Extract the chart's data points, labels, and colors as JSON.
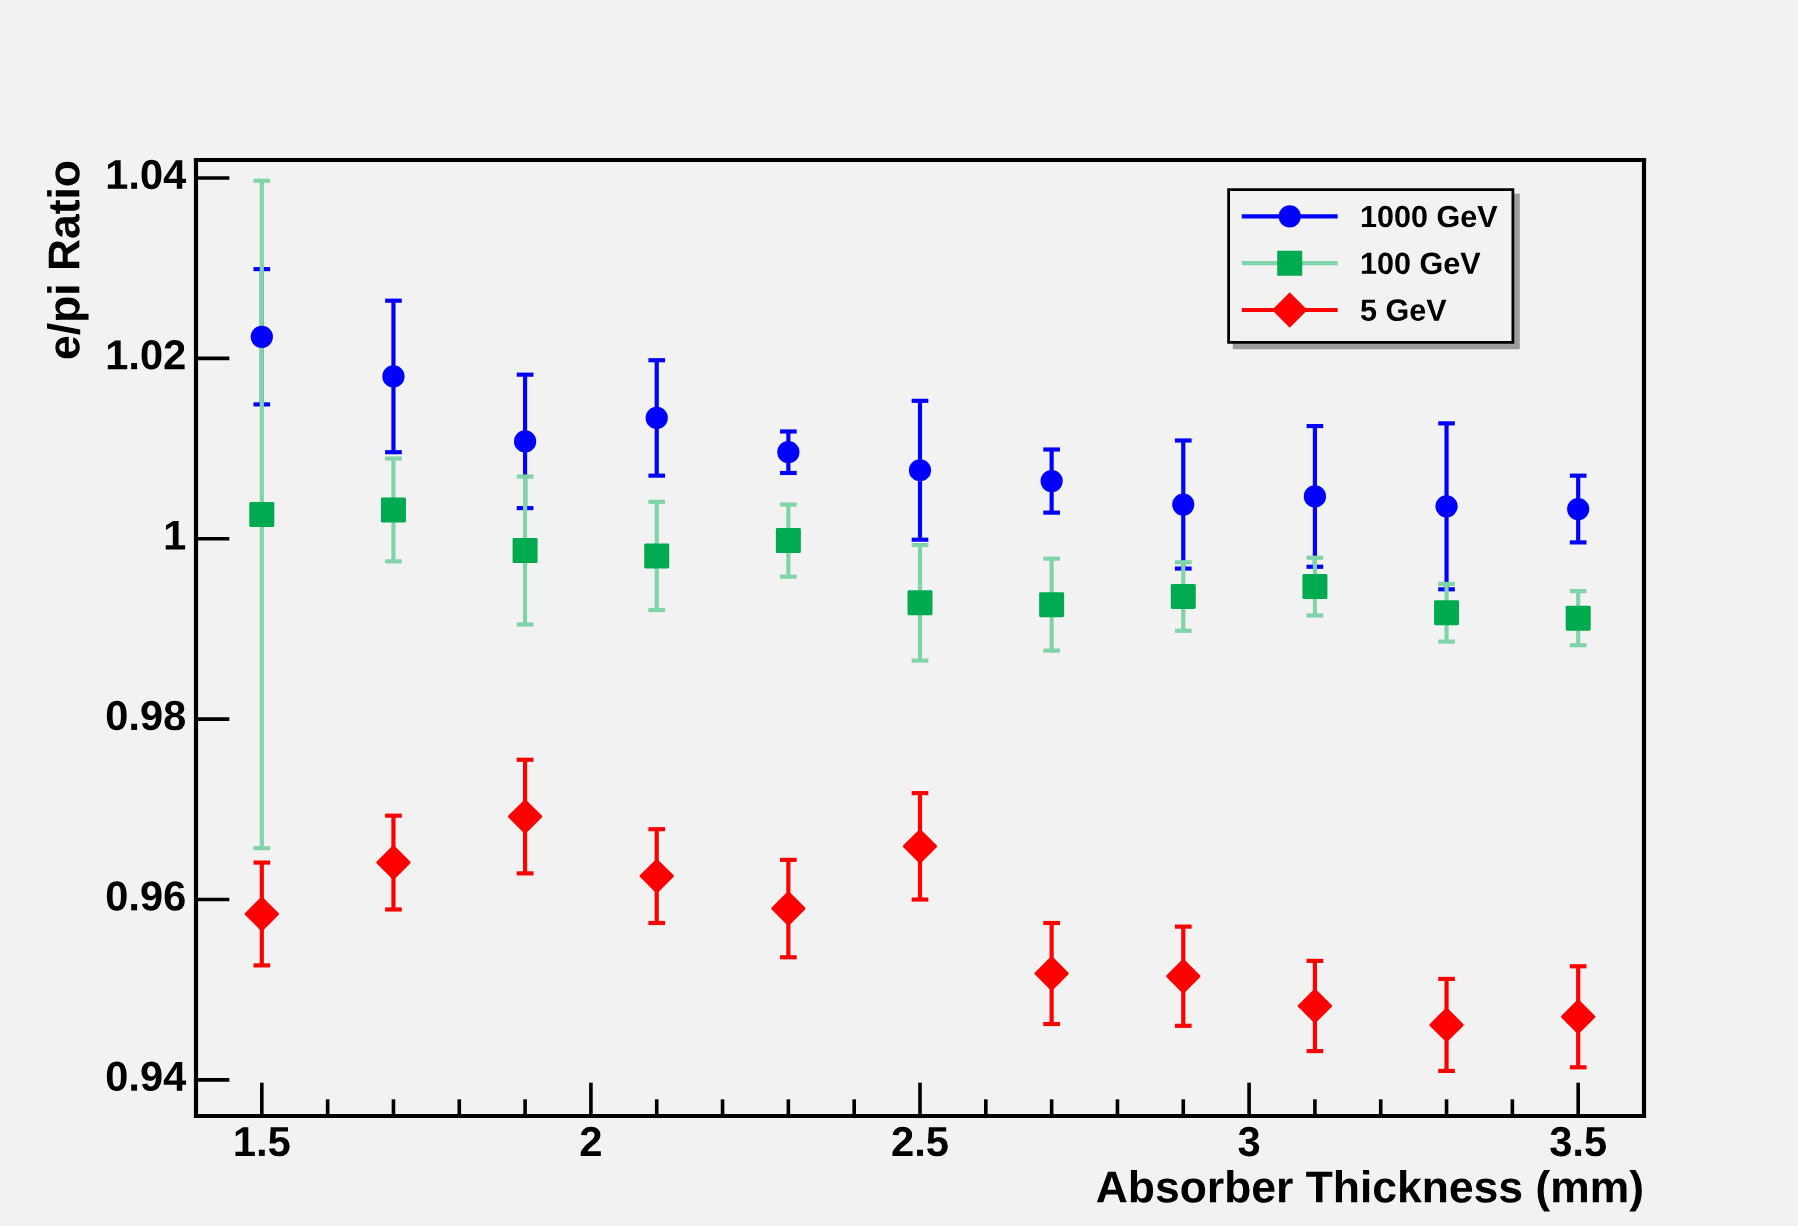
{
  "chart_data": {
    "type": "scatter",
    "xlabel": "Absorber Thickness (mm)",
    "ylabel": "e/pi Ratio",
    "x": [
      1.5,
      1.7,
      1.9,
      2.1,
      2.3,
      2.5,
      2.7,
      2.9,
      3.1,
      3.3,
      3.5
    ],
    "series": [
      {
        "name": "1000 GeV",
        "color": "#0000ff",
        "marker": "circle",
        "values": [
          1.0224,
          1.018,
          1.0108,
          1.0134,
          1.0096,
          1.0076,
          1.0064,
          1.0038,
          1.0047,
          1.0036,
          1.0033
        ],
        "errors": [
          0.0075,
          0.0084,
          0.0074,
          0.0064,
          0.0023,
          0.0077,
          0.0035,
          0.0071,
          0.0078,
          0.0092,
          0.0037
        ]
      },
      {
        "name": "100 GeV",
        "color": "#00aa50",
        "marker": "square",
        "values": [
          1.0027,
          1.0032,
          0.9987,
          0.9981,
          0.9998,
          0.9929,
          0.9927,
          0.9936,
          0.9947,
          0.9918,
          0.9912
        ],
        "errors": [
          0.037,
          0.0057,
          0.0082,
          0.006,
          0.004,
          0.0064,
          0.0051,
          0.0038,
          0.0032,
          0.0032,
          0.003
        ]
      },
      {
        "name": "5 GeV",
        "color": "#ff0000",
        "marker": "diamond",
        "values": [
          0.9584,
          0.9641,
          0.9692,
          0.9626,
          0.959,
          0.9659,
          0.9518,
          0.9515,
          0.9482,
          0.9461,
          0.947
        ],
        "errors": [
          0.0057,
          0.0052,
          0.0063,
          0.0052,
          0.0054,
          0.0059,
          0.0056,
          0.0055,
          0.005,
          0.0051,
          0.0056
        ]
      }
    ],
    "xlim": [
      1.4,
      3.6
    ],
    "ylim": [
      0.936,
      1.042
    ],
    "xticks": [
      1.5,
      2,
      2.5,
      3,
      3.5
    ],
    "yticks": [
      0.94,
      0.96,
      0.98,
      1,
      1.02,
      1.04
    ],
    "grid": false,
    "legend": "top right"
  }
}
